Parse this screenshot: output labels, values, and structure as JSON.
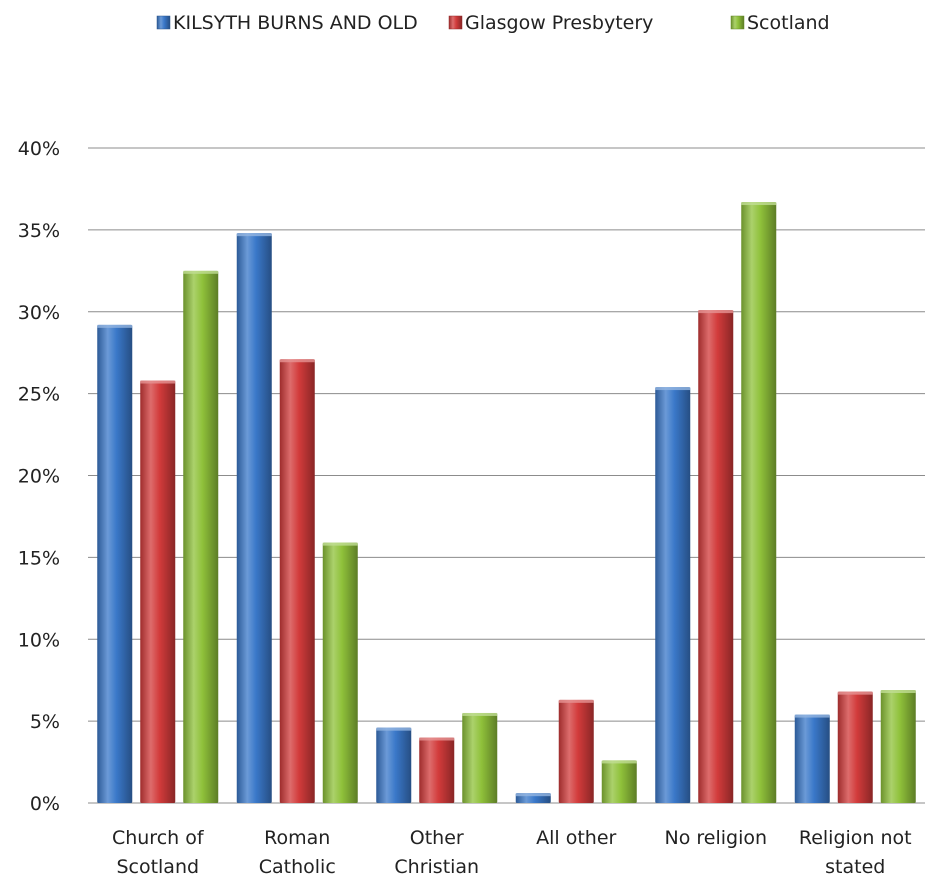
{
  "chart_data": {
    "type": "bar",
    "categories": [
      [
        "Church of",
        "Scotland"
      ],
      [
        "Roman",
        "Catholic"
      ],
      [
        "Other",
        "Christian"
      ],
      [
        "All other"
      ],
      [
        "No religion"
      ],
      [
        "Religion not",
        "stated"
      ]
    ],
    "series": [
      {
        "name": "KILSYTH BURNS AND OLD",
        "color": "#3a78c9",
        "values": [
          29.2,
          34.8,
          4.6,
          0.6,
          25.4,
          5.4
        ]
      },
      {
        "name": "Glasgow Presbytery",
        "color": "#d23b3b",
        "values": [
          25.8,
          27.1,
          4.0,
          6.3,
          30.1,
          6.8
        ]
      },
      {
        "name": "Scotland",
        "color": "#8fc13a",
        "values": [
          32.5,
          15.9,
          5.5,
          2.6,
          36.7,
          6.9
        ]
      }
    ],
    "ylim": [
      0,
      40
    ],
    "yticks": [
      "0%",
      "5%",
      "10%",
      "15%",
      "20%",
      "25%",
      "30%",
      "35%",
      "40%"
    ],
    "grid": true,
    "legend_position": "top"
  }
}
